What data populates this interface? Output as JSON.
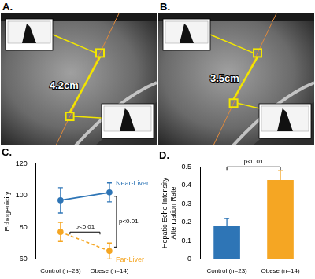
{
  "images": [
    {
      "label": "A.",
      "measurement": "4.2cm"
    },
    {
      "label": "B.",
      "measurement": "3.5cm"
    }
  ],
  "chart_data": [
    {
      "type": "line",
      "title": "C.",
      "categories": [
        "Control (n=23)",
        "Obese (n=14)"
      ],
      "y_label": "Echogenicity",
      "ylim": [
        60,
        120
      ],
      "yticks": [
        60,
        80,
        100,
        120
      ],
      "grid": false,
      "series": [
        {
          "name": "Near-Liver",
          "color": "#2e75b6",
          "marker": "circle",
          "line_style": "solid",
          "values": [
            97,
            102
          ],
          "errors": [
            8,
            6
          ]
        },
        {
          "name": "Far-Liver",
          "color": "#f5a623",
          "marker": "circle",
          "line_style": "dashed",
          "values": [
            77,
            65
          ],
          "errors": [
            6,
            5
          ]
        }
      ],
      "annotations": [
        {
          "text": "p<0.01"
        },
        {
          "text": "p<0.01"
        }
      ]
    },
    {
      "type": "bar",
      "title": "D.",
      "categories": [
        "Control (n=23)",
        "Obese (n=14)"
      ],
      "values": [
        0.18,
        0.43
      ],
      "errors": [
        0.04,
        0.05
      ],
      "colors": [
        "#2e75b6",
        "#f5a623"
      ],
      "y_label": "Hepatic Echo-Intensity Attenuation Rate",
      "ylim": [
        0,
        0.5
      ],
      "yticks": [
        0,
        0.1,
        0.2,
        0.3,
        0.4,
        0.5
      ],
      "grid": false,
      "annotations": [
        {
          "text": "p<0.01"
        }
      ]
    }
  ]
}
